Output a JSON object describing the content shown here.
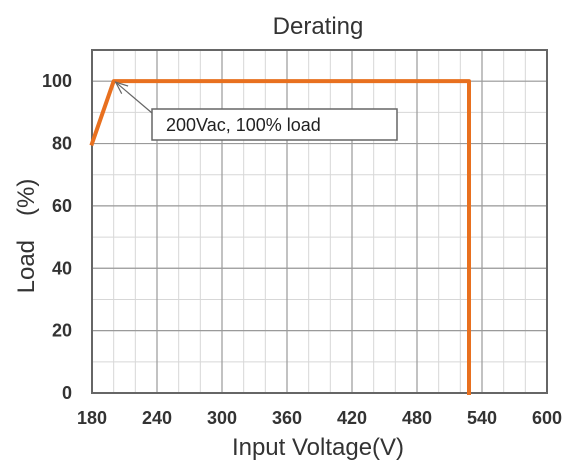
{
  "chart_data": {
    "type": "line",
    "title": "Derating",
    "xlabel": "Input Voltage(V)",
    "ylabel": "Load　(%)",
    "xlim": [
      180,
      600
    ],
    "ylim": [
      0,
      110
    ],
    "xticks": [
      180,
      240,
      300,
      360,
      420,
      480,
      540,
      600
    ],
    "yticks": [
      0,
      20,
      40,
      60,
      80,
      100
    ],
    "x_minor_step": 20,
    "y_minor_step": 10,
    "grid": true,
    "series": [
      {
        "x": [
          180,
          200,
          528,
          528
        ],
        "y": [
          80,
          100,
          100,
          0
        ],
        "color": "#E8701F"
      }
    ],
    "annotations": [
      {
        "text": "200Vac, 100% load",
        "x": 200,
        "y": 100
      }
    ]
  }
}
